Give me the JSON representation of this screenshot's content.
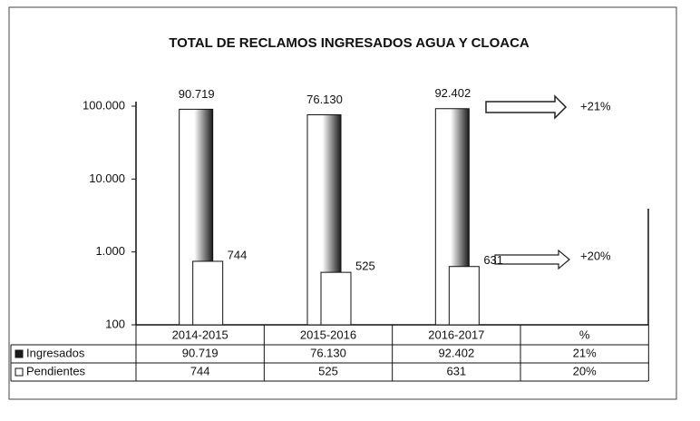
{
  "chart_data": {
    "type": "bar",
    "title": "TOTAL DE RECLAMOS INGRESADOS AGUA Y CLOACA",
    "categories": [
      "2014-2015",
      "2015-2016",
      "2016-2017"
    ],
    "series": [
      {
        "name": "Ingresados",
        "color": "#1a1a1a",
        "values": [
          90719,
          76130,
          92402
        ],
        "value_labels": [
          "90.719",
          "76.130",
          "92.402"
        ]
      },
      {
        "name": "Pendientes",
        "color": "#ffffff",
        "values": [
          744,
          525,
          631
        ],
        "value_labels": [
          "744",
          "525",
          "631"
        ]
      }
    ],
    "ylim": [
      100,
      100000
    ],
    "yticks": [
      100,
      {
        "value": 1000,
        "label": "1.000"
      },
      {
        "value": 10000,
        "label": "10.000"
      },
      {
        "value": 100000,
        "label": "100.000"
      }
    ],
    "log_scale": true,
    "grid": false,
    "annotations": [
      "+21%",
      "+20%"
    ],
    "data_table": {
      "extra_column": "%",
      "extra_values": [
        "21%",
        "20%"
      ]
    }
  }
}
